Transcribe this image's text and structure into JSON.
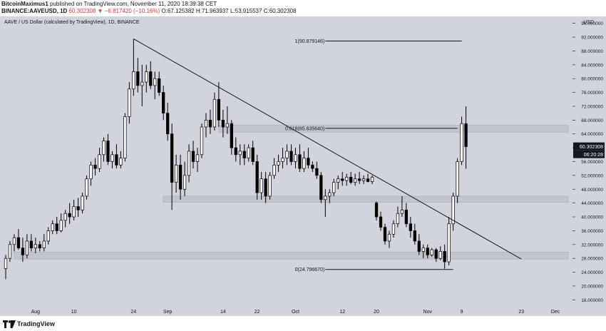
{
  "header": {
    "author": "BitcoinMaximus1",
    "published": "published on TradingView.com, November 11, 2020 18:39:38 CET",
    "symbol": "BINANCE:AAVEUSD, 1D",
    "last": "60.302308",
    "change": "▼ −6.817420 (−10.16%)",
    "open": "O:67.125382",
    "high": "H:71.963937",
    "low": "L:53.915537",
    "close": "C:60.302308"
  },
  "legend": "AAVE / US Dollar (calculated by TradingView), 1D, BINANCE",
  "footer": {
    "brand": "TradingView"
  },
  "colors": {
    "background": "#d1d4dc",
    "candle_up": "#ffffff",
    "candle_down": "#000000",
    "price_label": "#131722",
    "zone": "#c2c5cd"
  },
  "chart_data": {
    "type": "candlestick",
    "ylim": [
      14,
      98
    ],
    "yunit": "USD",
    "yticks": [
      16,
      20,
      24,
      28,
      32,
      36,
      40,
      44,
      48,
      52,
      56,
      60,
      64,
      68,
      72,
      76,
      80,
      84,
      88,
      92,
      96
    ],
    "ytick_labels": [
      "16.000000",
      "20.000000",
      "24.000000",
      "28.000000",
      "32.000000",
      "36.000000",
      "40.000000",
      "44.000000",
      "48.000000",
      "52.000000",
      "56.000000",
      "60.000000",
      "64.000000",
      "68.000000",
      "72.000000",
      "76.000000",
      "80.000000",
      "84.000000",
      "88.000000",
      "92.000000",
      "96.000000"
    ],
    "last_price_label": "60.302308",
    "countdown_label": "06:20:28",
    "xlim": [
      "2020-07-25",
      "2020-12-05"
    ],
    "xticks": [
      {
        "date": "2020-08-01",
        "label": "Aug"
      },
      {
        "date": "2020-08-10",
        "label": "10"
      },
      {
        "date": "2020-08-24",
        "label": "24"
      },
      {
        "date": "2020-09-01",
        "label": "Sep"
      },
      {
        "date": "2020-09-14",
        "label": "14"
      },
      {
        "date": "2020-09-22",
        "label": "22"
      },
      {
        "date": "2020-10-01",
        "label": "Oct"
      },
      {
        "date": "2020-10-12",
        "label": "12"
      },
      {
        "date": "2020-10-20",
        "label": "20"
      },
      {
        "date": "2020-11-01",
        "label": "Nov"
      },
      {
        "date": "2020-11-09",
        "label": "9"
      },
      {
        "date": "2020-11-23",
        "label": "23"
      },
      {
        "date": "2020-12-01",
        "label": "Dec"
      }
    ],
    "zones": [
      {
        "from": 64.5,
        "to": 66.5,
        "x_start": "2020-09-13"
      },
      {
        "from": 44.2,
        "to": 46.0,
        "x_start": "2020-08-31"
      },
      {
        "from": 27.8,
        "to": 29.8,
        "x_start": "2020-07-27"
      }
    ],
    "trendline": {
      "start": {
        "date": "2020-08-24",
        "value": 91.5
      },
      "end": {
        "date": "2020-11-23",
        "value": 27.8
      }
    },
    "fib_levels": [
      {
        "label": "1(90.879146)",
        "value": 90.879146,
        "x_start": "2020-10-08",
        "x_end": "2020-11-09"
      },
      {
        "label": "0.618(65.635640)",
        "value": 65.63564,
        "x_start": "2020-10-08",
        "x_end": "2020-11-08"
      },
      {
        "label": "0(24.796670)",
        "value": 24.79667,
        "x_start": "2020-10-08",
        "x_end": "2020-11-07"
      }
    ],
    "candles": [
      {
        "date": "2020-07-25",
        "o": 25.0,
        "h": 29.0,
        "l": 22.0,
        "c": 28.0
      },
      {
        "date": "2020-07-26",
        "o": 28.0,
        "h": 33.0,
        "l": 27.0,
        "c": 32.0
      },
      {
        "date": "2020-07-27",
        "o": 32.0,
        "h": 35.0,
        "l": 30.0,
        "c": 34.0
      },
      {
        "date": "2020-07-28",
        "o": 34.0,
        "h": 36.5,
        "l": 30.5,
        "c": 31.0
      },
      {
        "date": "2020-07-29",
        "o": 31.0,
        "h": 34.0,
        "l": 27.0,
        "c": 29.0
      },
      {
        "date": "2020-07-30",
        "o": 29.0,
        "h": 35.0,
        "l": 28.0,
        "c": 33.0
      },
      {
        "date": "2020-07-31",
        "o": 33.0,
        "h": 35.0,
        "l": 30.0,
        "c": 31.0
      },
      {
        "date": "2020-08-01",
        "o": 31.0,
        "h": 34.0,
        "l": 29.5,
        "c": 32.0
      },
      {
        "date": "2020-08-02",
        "o": 32.0,
        "h": 33.0,
        "l": 30.0,
        "c": 31.0
      },
      {
        "date": "2020-08-03",
        "o": 31.0,
        "h": 35.0,
        "l": 30.0,
        "c": 33.0
      },
      {
        "date": "2020-08-04",
        "o": 33.0,
        "h": 37.0,
        "l": 32.0,
        "c": 36.0
      },
      {
        "date": "2020-08-05",
        "o": 36.0,
        "h": 39.0,
        "l": 35.0,
        "c": 38.0
      },
      {
        "date": "2020-08-06",
        "o": 38.0,
        "h": 40.0,
        "l": 35.0,
        "c": 36.0
      },
      {
        "date": "2020-08-07",
        "o": 36.0,
        "h": 41.0,
        "l": 35.5,
        "c": 39.0
      },
      {
        "date": "2020-08-08",
        "o": 39.0,
        "h": 42.0,
        "l": 37.0,
        "c": 41.0
      },
      {
        "date": "2020-08-09",
        "o": 41.0,
        "h": 44.0,
        "l": 38.0,
        "c": 40.0
      },
      {
        "date": "2020-08-10",
        "o": 40.0,
        "h": 45.0,
        "l": 39.0,
        "c": 43.0
      },
      {
        "date": "2020-08-11",
        "o": 43.0,
        "h": 45.5,
        "l": 40.0,
        "c": 42.0
      },
      {
        "date": "2020-08-12",
        "o": 42.0,
        "h": 47.0,
        "l": 41.0,
        "c": 46.0
      },
      {
        "date": "2020-08-13",
        "o": 46.0,
        "h": 52.0,
        "l": 45.0,
        "c": 51.0
      },
      {
        "date": "2020-08-14",
        "o": 51.0,
        "h": 56.0,
        "l": 49.0,
        "c": 55.0
      },
      {
        "date": "2020-08-15",
        "o": 55.0,
        "h": 57.0,
        "l": 52.0,
        "c": 54.0
      },
      {
        "date": "2020-08-16",
        "o": 54.0,
        "h": 60.0,
        "l": 53.0,
        "c": 58.0
      },
      {
        "date": "2020-08-17",
        "o": 58.0,
        "h": 63.0,
        "l": 56.0,
        "c": 62.0
      },
      {
        "date": "2020-08-18",
        "o": 62.0,
        "h": 64.0,
        "l": 55.0,
        "c": 56.0
      },
      {
        "date": "2020-08-19",
        "o": 56.0,
        "h": 59.0,
        "l": 54.0,
        "c": 58.0
      },
      {
        "date": "2020-08-20",
        "o": 58.0,
        "h": 61.0,
        "l": 54.0,
        "c": 55.0
      },
      {
        "date": "2020-08-21",
        "o": 55.0,
        "h": 59.0,
        "l": 54.0,
        "c": 57.0
      },
      {
        "date": "2020-08-22",
        "o": 57.0,
        "h": 70.0,
        "l": 56.0,
        "c": 69.0
      },
      {
        "date": "2020-08-23",
        "o": 69.0,
        "h": 79.0,
        "l": 67.0,
        "c": 77.0
      },
      {
        "date": "2020-08-24",
        "o": 77.0,
        "h": 91.5,
        "l": 75.0,
        "c": 82.0
      },
      {
        "date": "2020-08-25",
        "o": 82.0,
        "h": 86.0,
        "l": 76.0,
        "c": 78.0
      },
      {
        "date": "2020-08-26",
        "o": 78.0,
        "h": 84.0,
        "l": 72.0,
        "c": 79.0
      },
      {
        "date": "2020-08-27",
        "o": 79.0,
        "h": 84.0,
        "l": 76.0,
        "c": 82.0
      },
      {
        "date": "2020-08-28",
        "o": 82.0,
        "h": 85.0,
        "l": 77.0,
        "c": 78.0
      },
      {
        "date": "2020-08-29",
        "o": 78.0,
        "h": 82.0,
        "l": 74.0,
        "c": 80.0
      },
      {
        "date": "2020-08-30",
        "o": 80.0,
        "h": 82.0,
        "l": 75.0,
        "c": 76.0
      },
      {
        "date": "2020-08-31",
        "o": 76.0,
        "h": 78.0,
        "l": 68.0,
        "c": 70.0
      },
      {
        "date": "2020-09-01",
        "o": 70.0,
        "h": 73.0,
        "l": 62.0,
        "c": 64.0
      },
      {
        "date": "2020-09-02",
        "o": 64.0,
        "h": 67.0,
        "l": 42.0,
        "c": 50.0
      },
      {
        "date": "2020-09-03",
        "o": 50.0,
        "h": 58.0,
        "l": 47.0,
        "c": 55.0
      },
      {
        "date": "2020-09-04",
        "o": 55.0,
        "h": 58.0,
        "l": 45.0,
        "c": 48.0
      },
      {
        "date": "2020-09-05",
        "o": 48.0,
        "h": 56.0,
        "l": 46.0,
        "c": 52.0
      },
      {
        "date": "2020-09-06",
        "o": 52.0,
        "h": 61.0,
        "l": 50.0,
        "c": 59.0
      },
      {
        "date": "2020-09-07",
        "o": 59.0,
        "h": 62.0,
        "l": 54.0,
        "c": 56.0
      },
      {
        "date": "2020-09-08",
        "o": 56.0,
        "h": 60.0,
        "l": 53.0,
        "c": 58.0
      },
      {
        "date": "2020-09-09",
        "o": 58.0,
        "h": 67.0,
        "l": 57.0,
        "c": 66.0
      },
      {
        "date": "2020-09-10",
        "o": 66.0,
        "h": 70.0,
        "l": 63.0,
        "c": 68.0
      },
      {
        "date": "2020-09-11",
        "o": 68.0,
        "h": 71.0,
        "l": 64.0,
        "c": 66.0
      },
      {
        "date": "2020-09-12",
        "o": 66.0,
        "h": 76.0,
        "l": 65.0,
        "c": 74.0
      },
      {
        "date": "2020-09-13",
        "o": 74.0,
        "h": 79.0,
        "l": 66.0,
        "c": 68.0
      },
      {
        "date": "2020-09-14",
        "o": 68.0,
        "h": 71.0,
        "l": 63.0,
        "c": 66.0
      },
      {
        "date": "2020-09-15",
        "o": 66.0,
        "h": 72.0,
        "l": 64.0,
        "c": 67.0
      },
      {
        "date": "2020-09-16",
        "o": 67.0,
        "h": 68.0,
        "l": 58.0,
        "c": 60.0
      },
      {
        "date": "2020-09-17",
        "o": 60.0,
        "h": 63.0,
        "l": 56.0,
        "c": 58.0
      },
      {
        "date": "2020-09-18",
        "o": 58.0,
        "h": 61.0,
        "l": 55.0,
        "c": 59.0
      },
      {
        "date": "2020-09-19",
        "o": 59.0,
        "h": 61.0,
        "l": 55.0,
        "c": 57.0
      },
      {
        "date": "2020-09-20",
        "o": 57.0,
        "h": 61.0,
        "l": 56.0,
        "c": 60.0
      },
      {
        "date": "2020-09-21",
        "o": 60.0,
        "h": 62.0,
        "l": 55.0,
        "c": 56.0
      },
      {
        "date": "2020-09-22",
        "o": 56.0,
        "h": 58.0,
        "l": 45.0,
        "c": 47.0
      },
      {
        "date": "2020-09-23",
        "o": 47.0,
        "h": 53.0,
        "l": 45.0,
        "c": 51.0
      },
      {
        "date": "2020-09-24",
        "o": 51.0,
        "h": 53.0,
        "l": 44.0,
        "c": 46.0
      },
      {
        "date": "2020-09-25",
        "o": 46.0,
        "h": 53.0,
        "l": 45.0,
        "c": 52.0
      },
      {
        "date": "2020-09-26",
        "o": 52.0,
        "h": 57.0,
        "l": 51.0,
        "c": 55.0
      },
      {
        "date": "2020-09-27",
        "o": 55.0,
        "h": 58.0,
        "l": 53.0,
        "c": 56.0
      },
      {
        "date": "2020-09-28",
        "o": 56.0,
        "h": 60.0,
        "l": 54.0,
        "c": 57.0
      },
      {
        "date": "2020-09-29",
        "o": 57.0,
        "h": 61.0,
        "l": 55.0,
        "c": 59.0
      },
      {
        "date": "2020-09-30",
        "o": 59.0,
        "h": 61.0,
        "l": 55.0,
        "c": 56.0
      },
      {
        "date": "2020-10-01",
        "o": 56.0,
        "h": 60.0,
        "l": 54.0,
        "c": 58.0
      },
      {
        "date": "2020-10-02",
        "o": 58.0,
        "h": 61.0,
        "l": 53.0,
        "c": 54.0
      },
      {
        "date": "2020-10-03",
        "o": 54.0,
        "h": 59.0,
        "l": 53.0,
        "c": 57.0
      },
      {
        "date": "2020-10-04",
        "o": 57.0,
        "h": 60.0,
        "l": 54.0,
        "c": 55.0
      },
      {
        "date": "2020-10-05",
        "o": 55.0,
        "h": 56.0,
        "l": 53.0,
        "c": 54.0
      },
      {
        "date": "2020-10-06",
        "o": 54.0,
        "h": 56.0,
        "l": 51.0,
        "c": 52.0
      },
      {
        "date": "2020-10-07",
        "o": 52.0,
        "h": 53.0,
        "l": 44.0,
        "c": 45.0
      },
      {
        "date": "2020-10-08",
        "o": 45.0,
        "h": 48.0,
        "l": 40.0,
        "c": 46.0
      },
      {
        "date": "2020-10-09",
        "o": 46.0,
        "h": 48.0,
        "l": 44.0,
        "c": 47.0
      },
      {
        "date": "2020-10-10",
        "o": 47.0,
        "h": 51.0,
        "l": 46.0,
        "c": 50.0
      },
      {
        "date": "2020-10-11",
        "o": 50.0,
        "h": 52.0,
        "l": 48.0,
        "c": 51.0
      },
      {
        "date": "2020-10-12",
        "o": 51.0,
        "h": 53.0,
        "l": 49.0,
        "c": 50.5
      },
      {
        "date": "2020-10-13",
        "o": 50.5,
        "h": 52.5,
        "l": 49.0,
        "c": 51.5
      },
      {
        "date": "2020-10-14",
        "o": 51.5,
        "h": 53.0,
        "l": 49.5,
        "c": 50.0
      },
      {
        "date": "2020-10-15",
        "o": 50.0,
        "h": 52.5,
        "l": 49.0,
        "c": 51.0
      },
      {
        "date": "2020-10-16",
        "o": 51.0,
        "h": 53.0,
        "l": 49.5,
        "c": 50.5
      },
      {
        "date": "2020-10-17",
        "o": 50.5,
        "h": 52.0,
        "l": 49.5,
        "c": 51.0
      },
      {
        "date": "2020-10-18",
        "o": 51.0,
        "h": 52.5,
        "l": 50.0,
        "c": 50.2
      },
      {
        "date": "2020-10-19",
        "o": 50.2,
        "h": 52.0,
        "l": 49.5,
        "c": 51.5
      },
      {
        "date": "2020-10-20",
        "o": 44.0,
        "h": 44.5,
        "l": 39.0,
        "c": 40.0
      },
      {
        "date": "2020-10-21",
        "o": 40.0,
        "h": 41.5,
        "l": 36.0,
        "c": 37.0
      },
      {
        "date": "2020-10-22",
        "o": 37.0,
        "h": 38.0,
        "l": 32.0,
        "c": 33.0
      },
      {
        "date": "2020-10-23",
        "o": 33.0,
        "h": 36.0,
        "l": 31.0,
        "c": 35.0
      },
      {
        "date": "2020-10-24",
        "o": 35.0,
        "h": 39.0,
        "l": 34.0,
        "c": 38.0
      },
      {
        "date": "2020-10-25",
        "o": 38.0,
        "h": 43.0,
        "l": 37.0,
        "c": 41.0
      },
      {
        "date": "2020-10-26",
        "o": 41.0,
        "h": 46.0,
        "l": 40.0,
        "c": 42.0
      },
      {
        "date": "2020-10-27",
        "o": 42.0,
        "h": 44.0,
        "l": 37.0,
        "c": 38.0
      },
      {
        "date": "2020-10-28",
        "o": 38.0,
        "h": 40.0,
        "l": 34.0,
        "c": 36.0
      },
      {
        "date": "2020-10-29",
        "o": 36.0,
        "h": 38.0,
        "l": 32.0,
        "c": 33.0
      },
      {
        "date": "2020-10-30",
        "o": 33.0,
        "h": 35.0,
        "l": 29.0,
        "c": 30.0
      },
      {
        "date": "2020-10-31",
        "o": 30.0,
        "h": 32.0,
        "l": 28.0,
        "c": 31.0
      },
      {
        "date": "2020-11-01",
        "o": 31.0,
        "h": 32.0,
        "l": 28.0,
        "c": 29.0
      },
      {
        "date": "2020-11-02",
        "o": 29.0,
        "h": 31.0,
        "l": 28.5,
        "c": 30.5
      },
      {
        "date": "2020-11-03",
        "o": 30.5,
        "h": 31.0,
        "l": 27.0,
        "c": 28.0
      },
      {
        "date": "2020-11-04",
        "o": 28.0,
        "h": 31.5,
        "l": 27.5,
        "c": 30.0
      },
      {
        "date": "2020-11-05",
        "o": 30.0,
        "h": 32.0,
        "l": 25.0,
        "c": 27.0
      },
      {
        "date": "2020-11-06",
        "o": 27.0,
        "h": 40.0,
        "l": 26.0,
        "c": 38.0
      },
      {
        "date": "2020-11-07",
        "o": 38.0,
        "h": 47.0,
        "l": 36.0,
        "c": 46.0
      },
      {
        "date": "2020-11-08",
        "o": 46.0,
        "h": 57.0,
        "l": 44.0,
        "c": 56.0
      },
      {
        "date": "2020-11-09",
        "o": 56.0,
        "h": 69.0,
        "l": 55.0,
        "c": 67.0
      },
      {
        "date": "2020-11-10",
        "o": 67.0,
        "h": 72.0,
        "l": 53.9,
        "c": 60.3
      }
    ]
  }
}
